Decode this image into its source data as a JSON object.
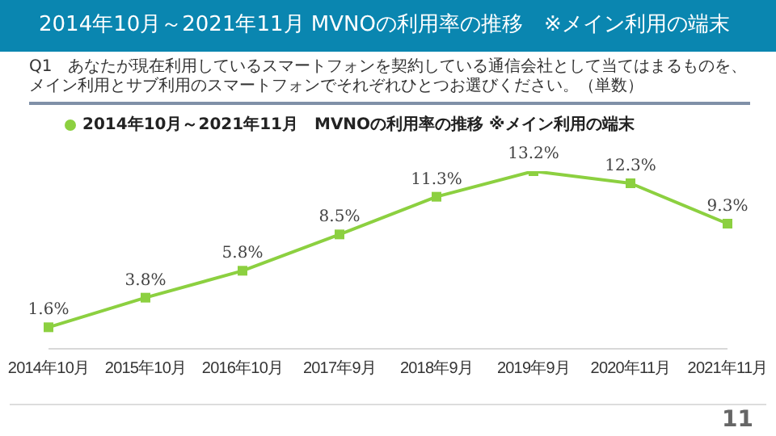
{
  "chart_data": {
    "type": "line",
    "title": "2014年10月～2021年11月 MVNOの利用率の推移　※メイン利用の端末",
    "subtitle": "Q1　あなたが現在利用しているスマートフォンを契約している通信会社として当てはまるものを、メイン利用とサブ利用のスマートフォンでそれぞれひとつお選びください。（単数）",
    "categories": [
      "2014年10月",
      "2015年10月",
      "2016年10月",
      "2017年9月",
      "2018年9月",
      "2019年9月",
      "2020年11月",
      "2021年11月"
    ],
    "series": [
      {
        "name": "2014年10月～2021年11月　MVNOの利用率の推移 ※メイン利用の端末",
        "color": "#8cd040",
        "values": [
          1.6,
          3.8,
          5.8,
          8.5,
          11.3,
          13.2,
          12.3,
          9.3
        ],
        "value_labels": [
          "1.6%",
          "3.8%",
          "5.8%",
          "8.5%",
          "11.3%",
          "13.2%",
          "12.3%",
          "9.3%"
        ]
      }
    ],
    "tick_labels": "x",
    "marker": "square",
    "line_style": "solid",
    "legend": "top left",
    "annotations": [
      "11"
    ]
  }
}
